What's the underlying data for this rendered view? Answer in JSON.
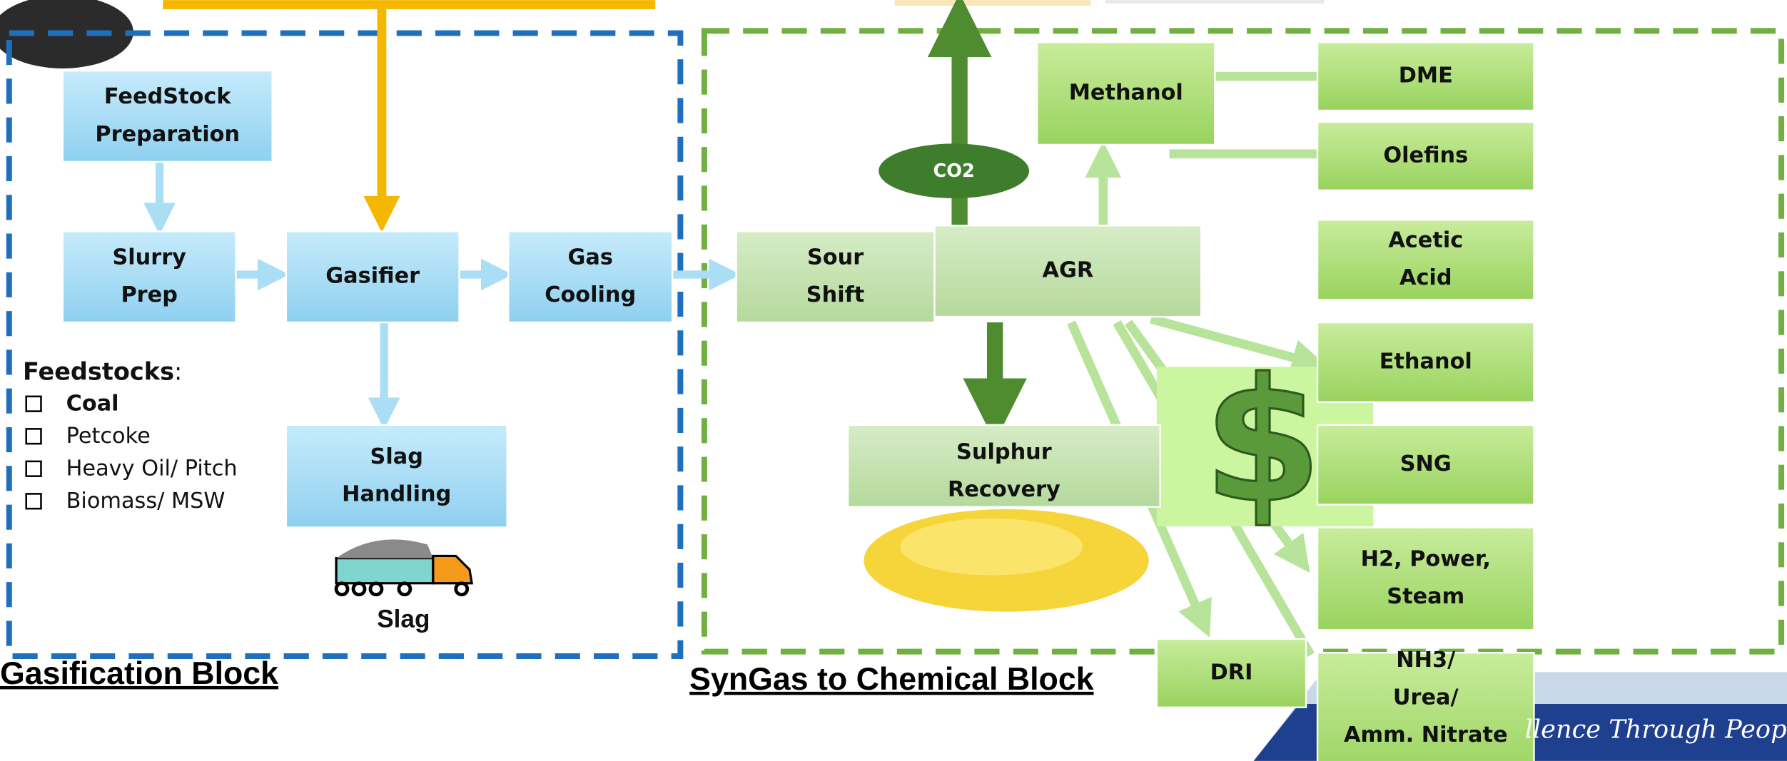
{
  "gasification_block": {
    "title": "Gasification Block",
    "nodes": [
      [
        "FeedStock",
        "Preparation"
      ],
      [
        "Slurry",
        "Prep"
      ],
      [
        "Gasifier"
      ],
      [
        "Gas",
        "Cooling"
      ],
      [
        "Slag",
        "Handling"
      ]
    ],
    "truck_label": "Slag"
  },
  "feedstocks": {
    "heading": "Feedstocks",
    "colon": ":",
    "items": [
      "Coal",
      "Petcoke",
      "Heavy Oil/ Pitch",
      "Biomass/ MSW"
    ]
  },
  "syngas_block": {
    "title": "SynGas to Chemical Block",
    "nodes": [
      [
        "Sour",
        "Shift"
      ],
      [
        "AGR"
      ],
      [
        "Sulphur",
        "Recovery"
      ],
      [
        "Methanol"
      ]
    ],
    "co2": "CO2"
  },
  "products": [
    [
      "DME"
    ],
    [
      "Olefins"
    ],
    [
      "Acetic",
      "Acid"
    ],
    [
      "Ethanol"
    ],
    [
      "SNG"
    ],
    [
      "H2, Power,",
      "Steam"
    ],
    [
      "DRI"
    ],
    [
      "NH3/",
      "Urea/",
      "Amm. Nitrate"
    ]
  ],
  "dollar_icon": "$",
  "footer": {
    "slogan": "llence Through Peopl"
  }
}
